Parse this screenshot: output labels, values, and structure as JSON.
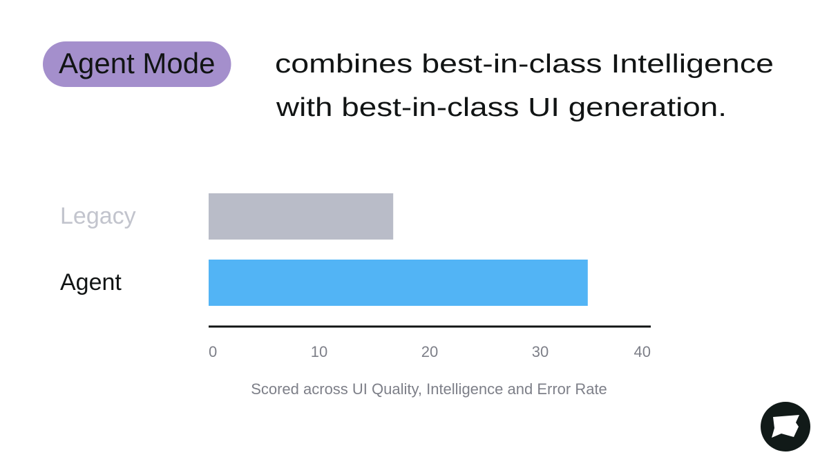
{
  "chart_data": {
    "type": "bar",
    "orientation": "horizontal",
    "title_highlight": "Agent Mode",
    "title_highlight_color": "#a48fcc",
    "title_lines": [
      "combines best-in-class Intelligence",
      "with best-in-class UI generation."
    ],
    "categories": [
      "Legacy",
      "Agent"
    ],
    "values": [
      16.7,
      34.3
    ],
    "colors": [
      "#b9bcc8",
      "#52b4f5"
    ],
    "label_colors": [
      "#c2c4cd",
      "#111414"
    ],
    "xlim": [
      0,
      40
    ],
    "xticks": [
      0,
      10,
      20,
      30,
      40
    ],
    "x_label": "Scored across UI Quality, Intelligence and Error Rate"
  }
}
